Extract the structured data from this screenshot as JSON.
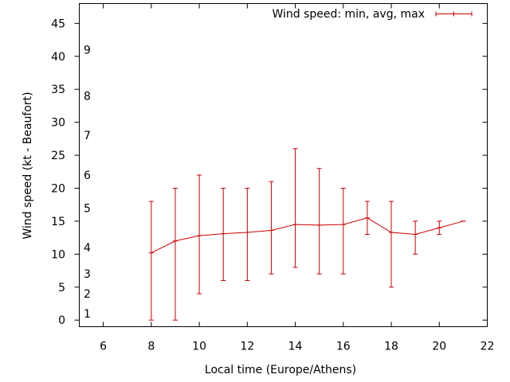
{
  "chart_data": {
    "type": "line",
    "title": "",
    "xlabel": "Local time (Europe/Athens)",
    "ylabel": "Wind speed (kt - Beaufort)",
    "xlim": [
      5,
      22
    ],
    "ylim": [
      -1,
      48
    ],
    "x_ticks": [
      6,
      8,
      10,
      12,
      14,
      16,
      18,
      20,
      22
    ],
    "y_ticks": [
      0,
      5,
      10,
      15,
      20,
      25,
      30,
      35,
      40,
      45
    ],
    "beaufort_labels": [
      {
        "value": 1,
        "label": "1"
      },
      {
        "value": 4,
        "label": "2"
      },
      {
        "value": 7,
        "label": "3"
      },
      {
        "value": 11,
        "label": "4"
      },
      {
        "value": 17,
        "label": "5"
      },
      {
        "value": 22,
        "label": "6"
      },
      {
        "value": 28,
        "label": "7"
      },
      {
        "value": 34,
        "label": "8"
      },
      {
        "value": 41,
        "label": "9"
      }
    ],
    "series": [
      {
        "name": "Wind speed: min, avg, max",
        "color": "#cc0000",
        "x": [
          8,
          9,
          10,
          11,
          12,
          13,
          14,
          15,
          16,
          17,
          18,
          19,
          20,
          21
        ],
        "avg": [
          10.2,
          12.0,
          12.8,
          13.1,
          13.3,
          13.6,
          14.5,
          14.4,
          14.5,
          15.5,
          13.3,
          13.0,
          14.0,
          15.0
        ],
        "min": [
          0,
          0,
          4,
          6,
          6,
          7,
          8,
          7,
          7,
          13,
          5,
          10,
          13,
          15
        ],
        "max": [
          18,
          20,
          22,
          20,
          20,
          21,
          26,
          23,
          20,
          18,
          18,
          15,
          15,
          15
        ]
      }
    ],
    "legend_position": "top-right",
    "grid": false
  }
}
